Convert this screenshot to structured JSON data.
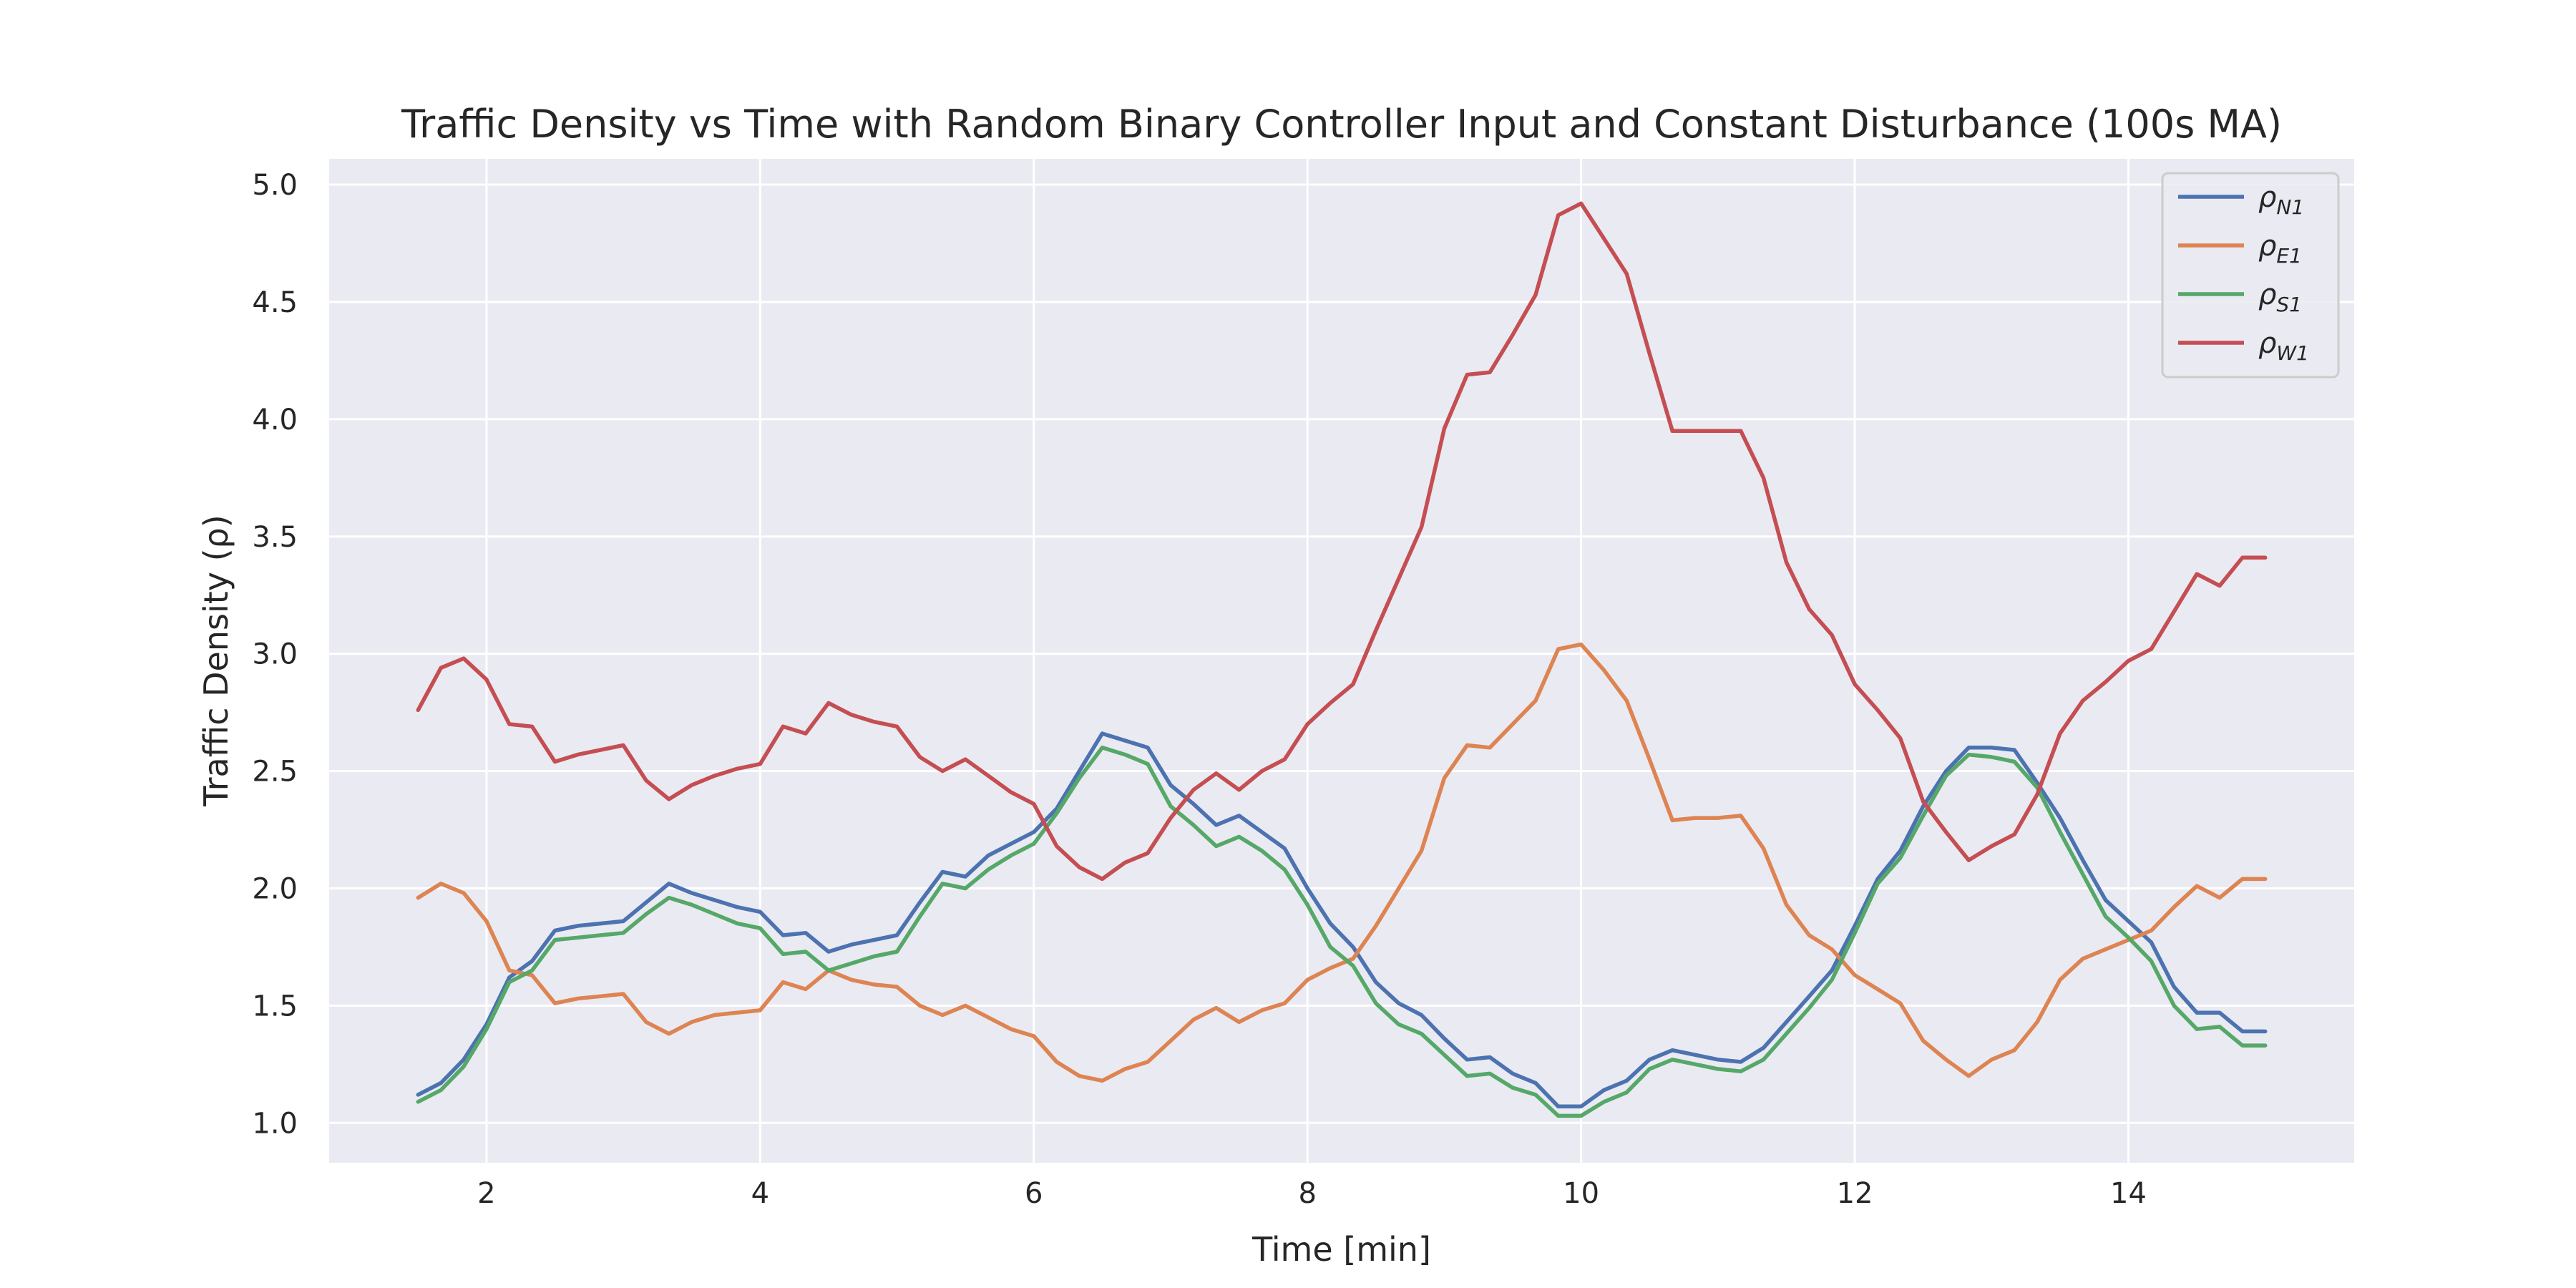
{
  "chart_data": {
    "type": "line",
    "title": "Traffic Density vs Time with Random Binary Controller Input and Constant Disturbance (100s MA)",
    "xlabel": "Time [min]",
    "ylabel": "Traffic Density (ρ)",
    "xlim": [
      0.85,
      15.65
    ],
    "ylim": [
      0.83,
      5.11
    ],
    "xticks": [
      2,
      4,
      6,
      8,
      10,
      12,
      14
    ],
    "yticks": [
      1.0,
      1.5,
      2.0,
      2.5,
      3.0,
      3.5,
      4.0,
      4.5,
      5.0
    ],
    "grid": true,
    "legend_position": "top-right",
    "background_color": "#eaeaf2",
    "grid_color": "#ffffff",
    "x": [
      1.5,
      1.667,
      1.833,
      2.0,
      2.167,
      2.333,
      2.5,
      2.667,
      2.833,
      3.0,
      3.167,
      3.333,
      3.5,
      3.667,
      3.833,
      4.0,
      4.167,
      4.333,
      4.5,
      4.667,
      4.833,
      5.0,
      5.167,
      5.333,
      5.5,
      5.667,
      5.833,
      6.0,
      6.167,
      6.333,
      6.5,
      6.667,
      6.833,
      7.0,
      7.167,
      7.333,
      7.5,
      7.667,
      7.833,
      8.0,
      8.167,
      8.333,
      8.5,
      8.667,
      8.833,
      9.0,
      9.167,
      9.333,
      9.5,
      9.667,
      9.833,
      10.0,
      10.167,
      10.333,
      10.5,
      10.667,
      10.833,
      11.0,
      11.167,
      11.333,
      11.5,
      11.667,
      11.833,
      12.0,
      12.167,
      12.333,
      12.5,
      12.667,
      12.833,
      13.0,
      13.167,
      13.333,
      13.5,
      13.667,
      13.833,
      14.0,
      14.167,
      14.333,
      14.5,
      14.667,
      14.833,
      15.0
    ],
    "series": [
      {
        "name": "ρN1",
        "label_base": "ρ",
        "label_sub": "N1",
        "color": "#4c72b0",
        "values": [
          1.12,
          1.17,
          1.27,
          1.42,
          1.62,
          1.69,
          1.82,
          1.84,
          1.85,
          1.86,
          1.94,
          2.02,
          1.98,
          1.95,
          1.92,
          1.9,
          1.8,
          1.81,
          1.73,
          1.76,
          1.78,
          1.8,
          1.94,
          2.07,
          2.05,
          2.14,
          2.19,
          2.24,
          2.34,
          2.5,
          2.66,
          2.63,
          2.6,
          2.44,
          2.36,
          2.27,
          2.31,
          2.24,
          2.17,
          2.0,
          1.85,
          1.75,
          1.6,
          1.51,
          1.46,
          1.36,
          1.27,
          1.28,
          1.21,
          1.17,
          1.07,
          1.07,
          1.14,
          1.18,
          1.27,
          1.31,
          1.29,
          1.27,
          1.26,
          1.32,
          1.43,
          1.54,
          1.65,
          1.84,
          2.04,
          2.16,
          2.35,
          2.5,
          2.6,
          2.6,
          2.59,
          2.45,
          2.3,
          2.12,
          1.95,
          1.86,
          1.77,
          1.58,
          1.47,
          1.47,
          1.39,
          1.39
        ]
      },
      {
        "name": "ρE1",
        "label_base": "ρ",
        "label_sub": "E1",
        "color": "#dd8452",
        "values": [
          1.96,
          2.02,
          1.98,
          1.86,
          1.65,
          1.63,
          1.51,
          1.53,
          1.54,
          1.55,
          1.43,
          1.38,
          1.43,
          1.46,
          1.47,
          1.48,
          1.6,
          1.57,
          1.65,
          1.61,
          1.59,
          1.58,
          1.5,
          1.46,
          1.5,
          1.45,
          1.4,
          1.37,
          1.26,
          1.2,
          1.18,
          1.23,
          1.26,
          1.35,
          1.44,
          1.49,
          1.43,
          1.48,
          1.51,
          1.61,
          1.66,
          1.7,
          1.84,
          2.0,
          2.16,
          2.47,
          2.61,
          2.6,
          2.7,
          2.8,
          3.02,
          3.04,
          2.93,
          2.8,
          2.55,
          2.29,
          2.3,
          2.3,
          2.31,
          2.17,
          1.93,
          1.8,
          1.74,
          1.63,
          1.57,
          1.51,
          1.35,
          1.27,
          1.2,
          1.27,
          1.31,
          1.43,
          1.61,
          1.7,
          1.74,
          1.78,
          1.82,
          1.92,
          2.01,
          1.96,
          2.04,
          2.04
        ]
      },
      {
        "name": "ρS1",
        "label_base": "ρ",
        "label_sub": "S1",
        "color": "#55a868",
        "values": [
          1.09,
          1.14,
          1.24,
          1.4,
          1.6,
          1.65,
          1.78,
          1.79,
          1.8,
          1.81,
          1.89,
          1.96,
          1.93,
          1.89,
          1.85,
          1.83,
          1.72,
          1.73,
          1.65,
          1.68,
          1.71,
          1.73,
          1.88,
          2.02,
          2.0,
          2.08,
          2.14,
          2.19,
          2.32,
          2.47,
          2.6,
          2.57,
          2.53,
          2.35,
          2.27,
          2.18,
          2.22,
          2.16,
          2.08,
          1.93,
          1.75,
          1.67,
          1.51,
          1.42,
          1.38,
          1.29,
          1.2,
          1.21,
          1.15,
          1.12,
          1.03,
          1.03,
          1.09,
          1.13,
          1.23,
          1.27,
          1.25,
          1.23,
          1.22,
          1.27,
          1.38,
          1.49,
          1.61,
          1.81,
          2.02,
          2.13,
          2.31,
          2.48,
          2.57,
          2.56,
          2.54,
          2.43,
          2.24,
          2.06,
          1.88,
          1.79,
          1.69,
          1.5,
          1.4,
          1.41,
          1.33,
          1.33
        ]
      },
      {
        "name": "ρW1",
        "label_base": "ρ",
        "label_sub": "W1",
        "color": "#c44e52",
        "values": [
          2.76,
          2.94,
          2.98,
          2.89,
          2.7,
          2.69,
          2.54,
          2.57,
          2.59,
          2.61,
          2.46,
          2.38,
          2.44,
          2.48,
          2.51,
          2.53,
          2.69,
          2.66,
          2.79,
          2.74,
          2.71,
          2.69,
          2.56,
          2.5,
          2.55,
          2.48,
          2.41,
          2.36,
          2.18,
          2.09,
          2.04,
          2.11,
          2.15,
          2.3,
          2.42,
          2.49,
          2.42,
          2.5,
          2.55,
          2.7,
          2.79,
          2.87,
          3.1,
          3.32,
          3.54,
          3.96,
          4.19,
          4.2,
          4.36,
          4.53,
          4.87,
          4.92,
          4.77,
          4.62,
          4.28,
          3.95,
          3.95,
          3.95,
          3.95,
          3.75,
          3.39,
          3.19,
          3.08,
          2.87,
          2.76,
          2.64,
          2.37,
          2.24,
          2.12,
          2.18,
          2.23,
          2.4,
          2.66,
          2.8,
          2.88,
          2.97,
          3.02,
          3.18,
          3.34,
          3.29,
          3.41,
          3.41
        ]
      }
    ]
  }
}
